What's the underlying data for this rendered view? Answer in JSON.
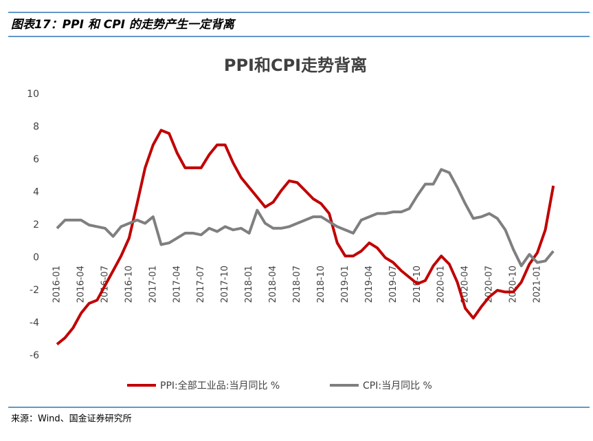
{
  "header": {
    "title": "图表17：PPI 和 CPI 的走势产生一定背离"
  },
  "chart_data": {
    "type": "line",
    "title": "PPI和CPI走势背离",
    "categories": [
      "2016-01",
      null,
      null,
      "2016-04",
      null,
      null,
      "2016-07",
      null,
      null,
      "2016-10",
      null,
      null,
      "2017-01",
      null,
      null,
      "2017-04",
      null,
      null,
      "2017-07",
      null,
      null,
      "2017-10",
      null,
      null,
      "2018-01",
      null,
      null,
      "2018-04",
      null,
      null,
      "2018-07",
      null,
      null,
      "2018-10",
      null,
      null,
      "2019-01",
      null,
      null,
      "2019-04",
      null,
      null,
      "2019-07",
      null,
      null,
      "2019-10",
      null,
      null,
      "2020-01",
      null,
      null,
      "2020-04",
      null,
      null,
      "2020-07",
      null,
      null,
      "2020-10",
      null,
      null,
      "2021-01",
      null,
      null
    ],
    "series": [
      {
        "name": "PPI:全部工业品:当月同比 %",
        "color": "#c00000",
        "values": [
          -5.3,
          -4.9,
          -4.3,
          -3.4,
          -2.8,
          -2.6,
          -1.7,
          -0.8,
          0.1,
          1.2,
          3.3,
          5.5,
          6.9,
          7.8,
          7.6,
          6.4,
          5.5,
          5.5,
          5.5,
          6.3,
          6.9,
          6.9,
          5.8,
          4.9,
          4.3,
          3.7,
          3.1,
          3.4,
          4.1,
          4.7,
          4.6,
          4.1,
          3.6,
          3.3,
          2.7,
          0.9,
          0.1,
          0.1,
          0.4,
          0.9,
          0.6,
          0,
          -0.3,
          -0.8,
          -1.2,
          -1.6,
          -1.4,
          -0.5,
          0.1,
          -0.4,
          -1.5,
          -3.1,
          -3.7,
          -3.0,
          -2.4,
          -2.0,
          -2.1,
          -2.1,
          -1.5,
          -0.4,
          0.3,
          1.7,
          4.4
        ]
      },
      {
        "name": "CPI:当月同比 %",
        "color": "#7f7f7f",
        "values": [
          1.8,
          2.3,
          2.3,
          2.3,
          2.0,
          1.9,
          1.8,
          1.3,
          1.9,
          2.1,
          2.3,
          2.1,
          2.5,
          0.8,
          0.9,
          1.2,
          1.5,
          1.5,
          1.4,
          1.8,
          1.6,
          1.9,
          1.7,
          1.8,
          1.5,
          2.9,
          2.1,
          1.8,
          1.8,
          1.9,
          2.1,
          2.3,
          2.5,
          2.5,
          2.2,
          1.9,
          1.7,
          1.5,
          2.3,
          2.5,
          2.7,
          2.7,
          2.8,
          2.8,
          3.0,
          3.8,
          4.5,
          4.5,
          5.4,
          5.2,
          4.3,
          3.3,
          2.4,
          2.5,
          2.7,
          2.4,
          1.7,
          0.5,
          -0.5,
          0.2,
          -0.3,
          -0.2,
          0.4
        ]
      }
    ],
    "ylim": [
      -6,
      10
    ],
    "yticks": [
      -6,
      -4,
      -2,
      0,
      2,
      4,
      6,
      8,
      10
    ],
    "grid": false,
    "legend": "bottom"
  },
  "source": "来源：Wind、国金证券研究所"
}
